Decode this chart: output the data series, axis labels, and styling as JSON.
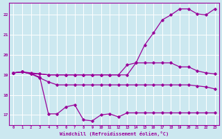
{
  "background_color": "#cce8f0",
  "grid_color": "#ffffff",
  "line_color": "#990099",
  "spine_color": "#990099",
  "xlabel": "Windchill (Refroidissement éolien,°C)",
  "xlim": [
    -0.5,
    23.5
  ],
  "ylim": [
    16.5,
    22.6
  ],
  "yticks": [
    17,
    18,
    19,
    20,
    21,
    22
  ],
  "xticks": [
    0,
    1,
    2,
    3,
    4,
    5,
    6,
    7,
    8,
    9,
    10,
    11,
    12,
    13,
    14,
    15,
    16,
    17,
    18,
    19,
    20,
    21,
    22,
    23
  ],
  "series": [
    [
      19.1,
      19.15,
      19.1,
      19.05,
      19.0,
      19.0,
      19.0,
      19.0,
      19.0,
      19.0,
      19.0,
      19.0,
      19.0,
      19.0,
      19.6,
      20.5,
      21.1,
      21.75,
      22.0,
      22.3,
      22.3,
      22.05,
      22.0,
      22.3
    ],
    [
      19.1,
      19.15,
      19.05,
      19.05,
      19.0,
      19.0,
      19.0,
      19.0,
      19.0,
      19.0,
      19.0,
      19.0,
      19.0,
      19.5,
      19.6,
      19.6,
      19.6,
      19.6,
      19.6,
      19.4,
      19.4,
      19.2,
      19.1,
      19.05
    ],
    [
      19.1,
      19.15,
      19.05,
      18.85,
      18.65,
      18.5,
      18.5,
      18.5,
      18.5,
      18.5,
      18.5,
      18.5,
      18.5,
      18.5,
      18.5,
      18.5,
      18.5,
      18.5,
      18.5,
      18.5,
      18.5,
      18.45,
      18.4,
      18.3
    ],
    [
      19.1,
      19.15,
      19.05,
      18.9,
      17.05,
      17.05,
      17.4,
      17.5,
      16.75,
      16.7,
      17.0,
      17.05,
      16.9,
      17.1,
      17.1,
      17.1,
      17.1,
      17.1,
      17.1,
      17.1,
      17.1,
      17.1,
      17.1,
      17.1
    ]
  ]
}
